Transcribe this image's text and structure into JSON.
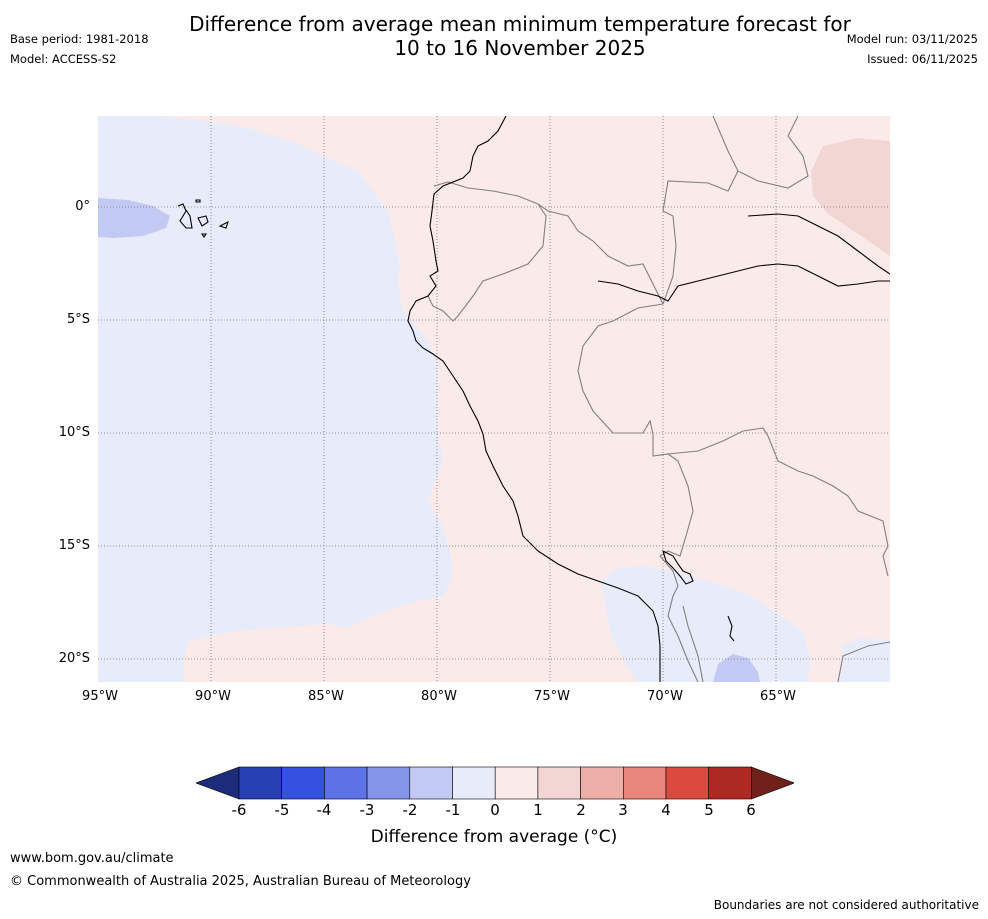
{
  "title": {
    "line1": "Difference from average mean minimum temperature forecast for",
    "line2": "10 to 16 November 2025"
  },
  "meta": {
    "base_period": "Base period: 1981-2018",
    "model": "Model: ACCESS-S2",
    "model_run": "Model run: 03/11/2025",
    "issued": "Issued: 06/11/2025"
  },
  "map": {
    "latitude_labels": [
      "0°",
      "5°S",
      "10°S",
      "15°S",
      "20°S"
    ],
    "longitude_labels": [
      "95°W",
      "90°W",
      "85°W",
      "80°W",
      "75°W",
      "70°W",
      "65°W"
    ],
    "colors": {
      "ocean_anomaly": "#e8ecfa",
      "land_anomaly": "#fbeaea",
      "warm_patch": "#f1d6d4",
      "cool_patch": "#c2c9f2",
      "coast": "#000000",
      "border": "#808080",
      "grid": "#777777"
    }
  },
  "colorbar": {
    "label": "Difference from average (°C)",
    "ticks": [
      "-6",
      "-5",
      "-4",
      "-3",
      "-2",
      "-1",
      "0",
      "1",
      "2",
      "3",
      "4",
      "5",
      "6"
    ],
    "colors": [
      "#1c2c7a",
      "#2640b2",
      "#3451e0",
      "#5c72e6",
      "#8595ea",
      "#c2c9f2",
      "#e8ecfa",
      "#fbeaea",
      "#f1d6d4",
      "#edaea8",
      "#e8857d",
      "#db4a3f",
      "#ad2a22",
      "#70211a"
    ]
  },
  "footer": {
    "url": "www.bom.gov.au/climate",
    "copyright": "© Commonwealth of Australia 2025, Australian Bureau of Meteorology",
    "note": "Boundaries are not considered authoritative"
  }
}
